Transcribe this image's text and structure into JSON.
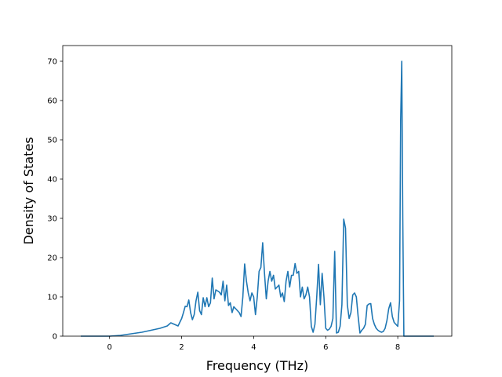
{
  "chart_data": {
    "type": "line",
    "title": "",
    "xlabel": "Frequency (THz)",
    "ylabel": "Density of States",
    "xlim": [
      -1.3,
      9.5
    ],
    "ylim": [
      0,
      74
    ],
    "xticks": [
      0,
      2,
      4,
      6,
      8
    ],
    "yticks": [
      0,
      10,
      20,
      30,
      40,
      50,
      60,
      70
    ],
    "grid": false,
    "legend": "none",
    "series": [
      {
        "color": "#1f77b4",
        "x": [
          -0.8,
          -0.4,
          0.0,
          0.3,
          0.6,
          0.9,
          1.2,
          1.4,
          1.6,
          1.7,
          1.8,
          1.9,
          2.0,
          2.05,
          2.1,
          2.15,
          2.2,
          2.25,
          2.3,
          2.35,
          2.4,
          2.45,
          2.5,
          2.55,
          2.6,
          2.65,
          2.7,
          2.75,
          2.8,
          2.85,
          2.9,
          2.95,
          3.0,
          3.05,
          3.1,
          3.15,
          3.2,
          3.25,
          3.3,
          3.35,
          3.4,
          3.45,
          3.5,
          3.55,
          3.6,
          3.65,
          3.7,
          3.75,
          3.8,
          3.85,
          3.9,
          3.95,
          4.0,
          4.05,
          4.1,
          4.15,
          4.2,
          4.25,
          4.3,
          4.35,
          4.4,
          4.45,
          4.5,
          4.55,
          4.6,
          4.65,
          4.7,
          4.75,
          4.8,
          4.85,
          4.9,
          4.95,
          5.0,
          5.05,
          5.1,
          5.15,
          5.2,
          5.25,
          5.3,
          5.35,
          5.4,
          5.45,
          5.5,
          5.55,
          5.6,
          5.65,
          5.7,
          5.75,
          5.8,
          5.85,
          5.9,
          5.95,
          6.0,
          6.05,
          6.1,
          6.15,
          6.2,
          6.25,
          6.3,
          6.35,
          6.4,
          6.45,
          6.5,
          6.55,
          6.6,
          6.65,
          6.7,
          6.75,
          6.8,
          6.85,
          6.9,
          6.95,
          7.0,
          7.05,
          7.1,
          7.15,
          7.2,
          7.25,
          7.3,
          7.35,
          7.4,
          7.45,
          7.5,
          7.55,
          7.6,
          7.65,
          7.7,
          7.75,
          7.8,
          7.85,
          7.9,
          7.95,
          8.0,
          8.05,
          8.08,
          8.11,
          8.14,
          8.17,
          8.2,
          8.5,
          9.0
        ],
        "y": [
          0,
          0,
          0,
          0.2,
          0.6,
          1.0,
          1.6,
          2.0,
          2.6,
          3.4,
          3.0,
          2.6,
          4.5,
          6.0,
          7.6,
          7.5,
          9.2,
          6.0,
          4.2,
          5.5,
          9.0,
          11.2,
          6.5,
          5.5,
          9.8,
          7.5,
          9.8,
          7.5,
          8.5,
          14.8,
          9.5,
          11.8,
          11.5,
          11.2,
          10.5,
          14.0,
          9.0,
          13.0,
          7.8,
          8.5,
          6.0,
          7.5,
          7.0,
          6.5,
          6.0,
          5.0,
          10.0,
          18.4,
          14.0,
          11.0,
          9.0,
          11.0,
          10.0,
          5.5,
          10.0,
          16.5,
          17.5,
          23.8,
          16.0,
          9.5,
          14.0,
          16.5,
          14.0,
          15.5,
          12.0,
          12.5,
          13.0,
          10.0,
          11.0,
          8.8,
          14.0,
          16.5,
          12.5,
          15.5,
          15.5,
          18.5,
          16.0,
          16.5,
          10.0,
          12.5,
          9.5,
          10.5,
          12.5,
          10.0,
          2.5,
          1.0,
          3.0,
          10.0,
          18.3,
          8.0,
          16.0,
          10.0,
          2.0,
          1.5,
          1.8,
          2.5,
          4.5,
          21.6,
          0.8,
          1.0,
          2.5,
          8.0,
          29.8,
          27.5,
          8.0,
          4.5,
          6.0,
          10.5,
          11.0,
          10.0,
          5.0,
          0.8,
          1.5,
          2.0,
          3.0,
          7.8,
          8.2,
          8.3,
          4.5,
          3.0,
          2.0,
          1.5,
          1.2,
          1.0,
          1.2,
          2.0,
          4.0,
          7.0,
          8.5,
          5.0,
          3.5,
          3.0,
          2.5,
          9.0,
          55.0,
          70.0,
          30.0,
          0,
          0,
          0,
          0
        ]
      }
    ]
  }
}
